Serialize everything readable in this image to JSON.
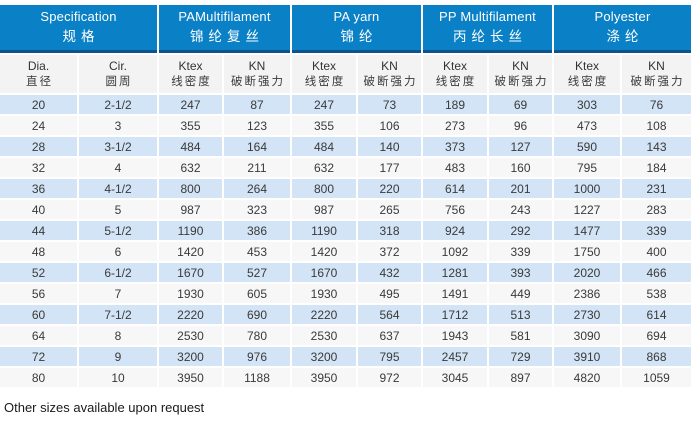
{
  "table": {
    "groups": [
      {
        "en": "Specification",
        "zh": "规格"
      },
      {
        "en": "PAMultifilament",
        "zh": "锦纶复丝"
      },
      {
        "en": "PA yarn",
        "zh": "锦纶"
      },
      {
        "en": "PP Multifilament",
        "zh": "丙纶长丝"
      },
      {
        "en": "Polyester",
        "zh": "涤纶"
      }
    ],
    "subheaders": [
      {
        "en": "Dia.",
        "zh": "直径"
      },
      {
        "en": "Cir.",
        "zh": "圆周"
      },
      {
        "en": "Ktex",
        "zh": "线密度"
      },
      {
        "en": "KN",
        "zh": "破断强力"
      },
      {
        "en": "Ktex",
        "zh": "线密度"
      },
      {
        "en": "KN",
        "zh": "破断强力"
      },
      {
        "en": "Ktex",
        "zh": "线密度"
      },
      {
        "en": "KN",
        "zh": "破断强力"
      },
      {
        "en": "Ktex",
        "zh": "线密度"
      },
      {
        "en": "KN",
        "zh": "破断强力"
      }
    ],
    "rows": [
      [
        "20",
        "2-1/2",
        "247",
        "87",
        "247",
        "73",
        "189",
        "69",
        "303",
        "76"
      ],
      [
        "24",
        "3",
        "355",
        "123",
        "355",
        "106",
        "273",
        "96",
        "473",
        "108"
      ],
      [
        "28",
        "3-1/2",
        "484",
        "164",
        "484",
        "140",
        "373",
        "127",
        "590",
        "143"
      ],
      [
        "32",
        "4",
        "632",
        "211",
        "632",
        "177",
        "483",
        "160",
        "795",
        "184"
      ],
      [
        "36",
        "4-1/2",
        "800",
        "264",
        "800",
        "220",
        "614",
        "201",
        "1000",
        "231"
      ],
      [
        "40",
        "5",
        "987",
        "323",
        "987",
        "265",
        "756",
        "243",
        "1227",
        "283"
      ],
      [
        "44",
        "5-1/2",
        "1190",
        "386",
        "1190",
        "318",
        "924",
        "292",
        "1477",
        "339"
      ],
      [
        "48",
        "6",
        "1420",
        "453",
        "1420",
        "372",
        "1092",
        "339",
        "1750",
        "400"
      ],
      [
        "52",
        "6-1/2",
        "1670",
        "527",
        "1670",
        "432",
        "1281",
        "393",
        "2020",
        "466"
      ],
      [
        "56",
        "7",
        "1930",
        "605",
        "1930",
        "495",
        "1491",
        "449",
        "2386",
        "538"
      ],
      [
        "60",
        "7-1/2",
        "2220",
        "690",
        "2220",
        "564",
        "1712",
        "513",
        "2730",
        "614"
      ],
      [
        "64",
        "8",
        "2530",
        "780",
        "2530",
        "637",
        "1943",
        "581",
        "3090",
        "694"
      ],
      [
        "72",
        "9",
        "3200",
        "976",
        "3200",
        "795",
        "2457",
        "729",
        "3910",
        "868"
      ],
      [
        "80",
        "10",
        "3950",
        "1188",
        "3950",
        "972",
        "3045",
        "897",
        "4820",
        "1059"
      ]
    ]
  },
  "footer": {
    "note": "Other sizes available upon request"
  },
  "colors": {
    "header_blue": "#0a80c6",
    "header_border_navy": "#11518d",
    "row_blue": "#d2e4f5",
    "row_gray": "#f7f7f7",
    "subheader_gray": "#f3f3f3"
  }
}
